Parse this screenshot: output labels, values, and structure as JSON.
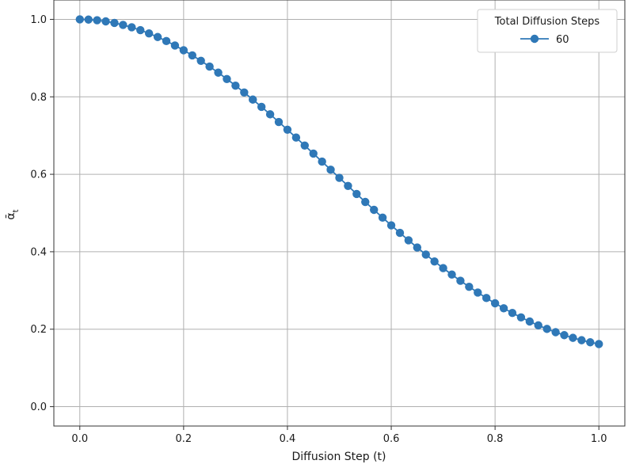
{
  "chart_data": {
    "type": "line",
    "title": "",
    "xlabel": "Diffusion Step (t)",
    "ylabel_base": "ᾱ",
    "ylabel_subscript": "t",
    "xlim": [
      -0.05,
      1.05
    ],
    "ylim": [
      -0.05,
      1.05
    ],
    "xticks": [
      0.0,
      0.2,
      0.4,
      0.6,
      0.8,
      1.0
    ],
    "xtick_labels": [
      "0.0",
      "0.2",
      "0.4",
      "0.6",
      "0.8",
      "1.0"
    ],
    "yticks": [
      0.0,
      0.2,
      0.4,
      0.6,
      0.8,
      1.0
    ],
    "ytick_labels": [
      "0.0",
      "0.2",
      "0.4",
      "0.6",
      "0.8",
      "1.0"
    ],
    "grid": true,
    "legend": {
      "title": "Total Diffusion Steps",
      "placement": "top-right"
    },
    "series": [
      {
        "name": "60",
        "color": "#2f78b7",
        "marker": "circle",
        "x": [
          0.0,
          0.0167,
          0.0333,
          0.05,
          0.0667,
          0.0833,
          0.1,
          0.1167,
          0.1333,
          0.15,
          0.1667,
          0.1833,
          0.2,
          0.2167,
          0.2333,
          0.25,
          0.2667,
          0.2833,
          0.3,
          0.3167,
          0.3333,
          0.35,
          0.3667,
          0.3833,
          0.4,
          0.4167,
          0.4333,
          0.45,
          0.4667,
          0.4833,
          0.5,
          0.5167,
          0.5333,
          0.55,
          0.5667,
          0.5833,
          0.6,
          0.6167,
          0.6333,
          0.65,
          0.6667,
          0.6833,
          0.7,
          0.7167,
          0.7333,
          0.75,
          0.7667,
          0.7833,
          0.8,
          0.8167,
          0.8333,
          0.85,
          0.8667,
          0.8833,
          0.9,
          0.9167,
          0.9333,
          0.95,
          0.9667,
          0.9833,
          1.0
        ],
        "y": [
          1.0,
          0.9994,
          0.9977,
          0.9948,
          0.9908,
          0.9857,
          0.9795,
          0.9722,
          0.9638,
          0.9544,
          0.944,
          0.9326,
          0.9203,
          0.9071,
          0.893,
          0.8781,
          0.8624,
          0.846,
          0.8289,
          0.8112,
          0.7929,
          0.7741,
          0.7548,
          0.7351,
          0.7151,
          0.6948,
          0.6742,
          0.6535,
          0.6327,
          0.6118,
          0.5909,
          0.57,
          0.5492,
          0.5286,
          0.5082,
          0.4881,
          0.4682,
          0.4487,
          0.4296,
          0.4109,
          0.3927,
          0.3749,
          0.3577,
          0.3411,
          0.325,
          0.3095,
          0.2947,
          0.2805,
          0.2669,
          0.2541,
          0.2419,
          0.2305,
          0.2199,
          0.2099,
          0.2007,
          0.1923,
          0.1846,
          0.1777,
          0.1716,
          0.1662,
          0.1617
        ]
      }
    ]
  }
}
